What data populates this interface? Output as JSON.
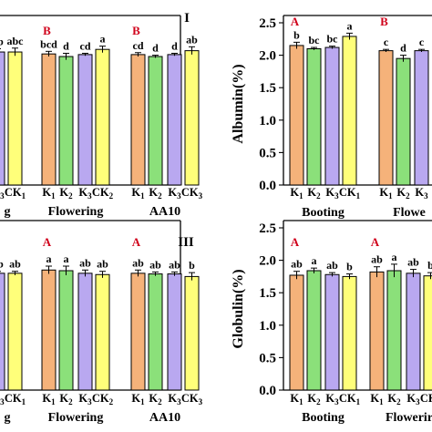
{
  "colors": {
    "K1": "#f5b27a",
    "K2": "#8be07a",
    "K3": "#b9a8f0",
    "CK": "#ffff7a",
    "group_letter": "#d0021b"
  },
  "chart_data": [
    {
      "id": "panel-I",
      "type": "bar",
      "panel_label": "I",
      "ylabel": "",
      "groups": [
        {
          "name": "Booting",
          "visible_name": "g",
          "group_letter": "",
          "bars": [
            {
              "label": "K3",
              "value": 2.05,
              "err": 0.05,
              "sig": "ab"
            },
            {
              "label": "CK1",
              "value": 2.05,
              "err": 0.06,
              "sig": "abc"
            }
          ]
        },
        {
          "name": "Flowering",
          "group_letter": "B",
          "bars": [
            {
              "label": "K1",
              "value": 2.02,
              "err": 0.04,
              "sig": "bcd"
            },
            {
              "label": "K2",
              "value": 1.98,
              "err": 0.05,
              "sig": "d"
            },
            {
              "label": "K3",
              "value": 2.01,
              "err": 0.02,
              "sig": "cd"
            },
            {
              "label": "CK2",
              "value": 2.09,
              "err": 0.05,
              "sig": "a"
            }
          ]
        },
        {
          "name": "AA10",
          "group_letter": "B",
          "bars": [
            {
              "label": "K1",
              "value": 2.01,
              "err": 0.03,
              "sig": "cd"
            },
            {
              "label": "K2",
              "value": 1.98,
              "err": 0.02,
              "sig": "d"
            },
            {
              "label": "K3",
              "value": 2.01,
              "err": 0.02,
              "sig": "d"
            },
            {
              "label": "CK3",
              "value": 2.07,
              "err": 0.06,
              "sig": "ab"
            }
          ]
        }
      ]
    },
    {
      "id": "panel-albumin",
      "type": "bar",
      "ylabel": "Albumin(%)",
      "ylim": [
        0.0,
        2.5
      ],
      "yticks": [
        "0.0",
        "0.5",
        "1.0",
        "1.5",
        "2.0",
        "2.5"
      ],
      "groups": [
        {
          "name": "Booting",
          "group_letter": "A",
          "bars": [
            {
              "label": "K1",
              "value": 2.15,
              "err": 0.05,
              "sig": "b"
            },
            {
              "label": "K2",
              "value": 2.1,
              "err": 0.02,
              "sig": "bc"
            },
            {
              "label": "K3",
              "value": 2.12,
              "err": 0.02,
              "sig": "bc"
            },
            {
              "label": "CK1",
              "value": 2.29,
              "err": 0.05,
              "sig": "a"
            }
          ]
        },
        {
          "name": "Flowering",
          "visible_name": "Flowe",
          "group_letter": "B",
          "bars": [
            {
              "label": "K1",
              "value": 2.07,
              "err": 0.02,
              "sig": "c"
            },
            {
              "label": "K2",
              "value": 1.95,
              "err": 0.05,
              "sig": "d"
            },
            {
              "label": "K3",
              "value": 2.07,
              "err": 0.02,
              "sig": "c"
            }
          ]
        }
      ]
    },
    {
      "id": "panel-III",
      "type": "bar",
      "panel_label": "III",
      "ylabel": "",
      "groups": [
        {
          "name": "Booting",
          "visible_name": "g",
          "group_letter": "",
          "bars": [
            {
              "label": "K3",
              "value": 1.8,
              "err": 0.03,
              "sig": "ab"
            },
            {
              "label": "CK1",
              "value": 1.8,
              "err": 0.03,
              "sig": "ab"
            }
          ]
        },
        {
          "name": "Flowering",
          "group_letter": "A",
          "bars": [
            {
              "label": "K1",
              "value": 1.85,
              "err": 0.06,
              "sig": "a"
            },
            {
              "label": "K2",
              "value": 1.84,
              "err": 0.07,
              "sig": "a"
            },
            {
              "label": "K3",
              "value": 1.8,
              "err": 0.05,
              "sig": "ab"
            },
            {
              "label": "CK2",
              "value": 1.78,
              "err": 0.05,
              "sig": "ab"
            }
          ]
        },
        {
          "name": "AA10",
          "group_letter": "A",
          "bars": [
            {
              "label": "K1",
              "value": 1.8,
              "err": 0.05,
              "sig": "ab"
            },
            {
              "label": "K2",
              "value": 1.79,
              "err": 0.03,
              "sig": "ab"
            },
            {
              "label": "K3",
              "value": 1.79,
              "err": 0.03,
              "sig": "ab"
            },
            {
              "label": "CK3",
              "value": 1.75,
              "err": 0.06,
              "sig": "b"
            }
          ]
        }
      ]
    },
    {
      "id": "panel-globulin",
      "type": "bar",
      "ylabel": "Globulin(%)",
      "ylim": [
        0.0,
        2.5
      ],
      "yticks": [
        "0.0",
        "0.5",
        "1.0",
        "1.5",
        "2.0",
        "2.5"
      ],
      "groups": [
        {
          "name": "Booting",
          "group_letter": "A",
          "bars": [
            {
              "label": "K1",
              "value": 1.77,
              "err": 0.06,
              "sig": "ab"
            },
            {
              "label": "K2",
              "value": 1.84,
              "err": 0.04,
              "sig": "a"
            },
            {
              "label": "K3",
              "value": 1.78,
              "err": 0.03,
              "sig": "ab"
            },
            {
              "label": "CK1",
              "value": 1.75,
              "err": 0.04,
              "sig": "b"
            }
          ]
        },
        {
          "name": "Flowering",
          "visible_name": "Flowerir",
          "group_letter": "A",
          "bars": [
            {
              "label": "K1",
              "value": 1.82,
              "err": 0.08,
              "sig": "ab"
            },
            {
              "label": "K2",
              "value": 1.84,
              "err": 0.1,
              "sig": "a"
            },
            {
              "label": "K3",
              "value": 1.8,
              "err": 0.06,
              "sig": "ab"
            },
            {
              "label": "CK2",
              "value": 1.76,
              "err": 0.05,
              "sig": "b"
            }
          ]
        }
      ]
    }
  ]
}
